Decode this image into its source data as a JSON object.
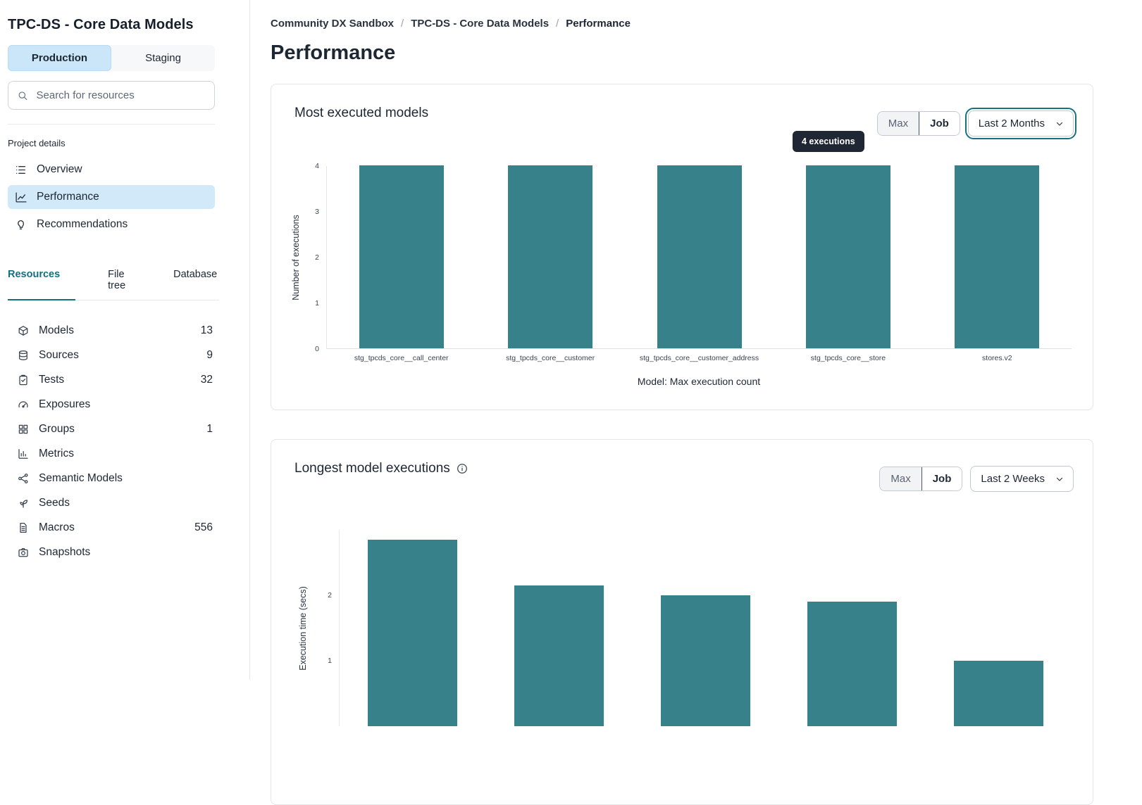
{
  "sidebar": {
    "title": "TPC-DS - Core Data Models",
    "env_tabs": [
      {
        "label": "Production",
        "active": true
      },
      {
        "label": "Staging",
        "active": false
      }
    ],
    "search_placeholder": "Search for resources",
    "project_details_label": "Project details",
    "nav_items": [
      {
        "label": "Overview",
        "icon": "list-icon",
        "active": false
      },
      {
        "label": "Performance",
        "icon": "line-chart-icon",
        "active": true
      },
      {
        "label": "Recommendations",
        "icon": "lightbulb-icon",
        "active": false
      }
    ],
    "resource_tabs": [
      {
        "label": "Resources",
        "active": true
      },
      {
        "label": "File tree",
        "active": false
      },
      {
        "label": "Database",
        "active": false
      }
    ],
    "resources": [
      {
        "label": "Models",
        "icon": "cube-icon",
        "count": "13"
      },
      {
        "label": "Sources",
        "icon": "database-icon",
        "count": "9"
      },
      {
        "label": "Tests",
        "icon": "clipboard-check-icon",
        "count": "32"
      },
      {
        "label": "Exposures",
        "icon": "gauge-icon",
        "count": ""
      },
      {
        "label": "Groups",
        "icon": "grid-icon",
        "count": "1"
      },
      {
        "label": "Metrics",
        "icon": "bar-chart-icon",
        "count": ""
      },
      {
        "label": "Semantic Models",
        "icon": "semantic-network-icon",
        "count": ""
      },
      {
        "label": "Seeds",
        "icon": "sprout-icon",
        "count": ""
      },
      {
        "label": "Macros",
        "icon": "file-icon",
        "count": "556"
      },
      {
        "label": "Snapshots",
        "icon": "camera-icon",
        "count": ""
      }
    ]
  },
  "breadcrumb": {
    "items": [
      "Community DX Sandbox",
      "TPC-DS - Core Data Models",
      "Performance"
    ],
    "separator": "/"
  },
  "page_title": "Performance",
  "cards": [
    {
      "title": "Most executed models",
      "toggle": [
        "Max",
        "Job"
      ],
      "range_select": "Last 2 Months",
      "tooltip": "4 executions"
    },
    {
      "title": "Longest model executions",
      "info_icon": "info-icon",
      "toggle": [
        "Max",
        "Job"
      ],
      "range_select": "Last 2 Weeks"
    }
  ],
  "chart_data": [
    {
      "type": "bar",
      "title": "Most executed models",
      "categories": [
        "stg_tpcds_core__call_center",
        "stg_tpcds_core__customer",
        "stg_tpcds_core__customer_address",
        "stg_tpcds_core__store",
        "stores.v2"
      ],
      "values": [
        4,
        4,
        4,
        4,
        4
      ],
      "xlabel": "Model: Max execution count",
      "ylabel": "Number of executions",
      "ylim": [
        0,
        4
      ],
      "yticks": [
        0,
        1,
        2,
        3,
        4
      ],
      "bar_color": "#37818B",
      "grid": false,
      "legend": false,
      "tooltip": {
        "text": "4 executions",
        "bar_index": 3
      }
    },
    {
      "type": "bar",
      "title": "Longest model executions",
      "values": [
        2.85,
        2.15,
        2.0,
        1.9,
        1.0
      ],
      "xlabel": "",
      "ylabel": "Execution time (secs)",
      "ylim": [
        0,
        3
      ],
      "yticks": [
        1,
        2
      ],
      "bar_color": "#37818B",
      "grid": false,
      "legend": false
    }
  ],
  "colors": {
    "accent_teal": "#10717D",
    "bar_teal": "#37818B",
    "active_blue_bg": "#CBE6F8",
    "tooltip_bg": "#1E2733",
    "text_dark": "#1D2633",
    "text_muted": "#5B6472",
    "border": "#E2E5E9"
  }
}
